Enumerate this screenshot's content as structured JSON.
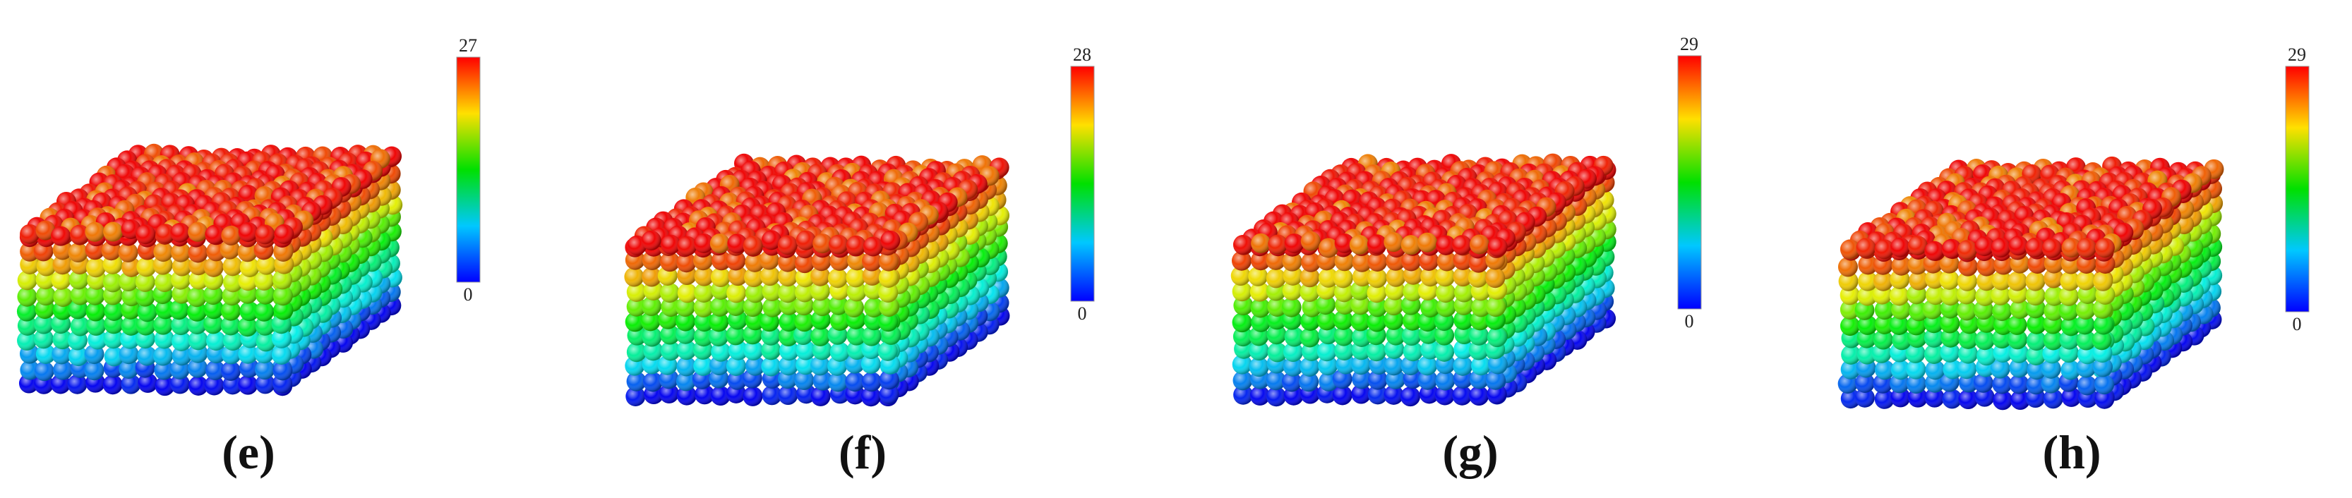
{
  "panels": [
    {
      "label": "(e)",
      "colorbar": {
        "max": 27,
        "min": 0
      }
    },
    {
      "label": "(f)",
      "colorbar": {
        "max": 28,
        "min": 0
      }
    },
    {
      "label": "(g)",
      "colorbar": {
        "max": 29,
        "min": 0
      }
    },
    {
      "label": "(h)",
      "colorbar": {
        "max": 29,
        "min": 0
      }
    }
  ]
}
